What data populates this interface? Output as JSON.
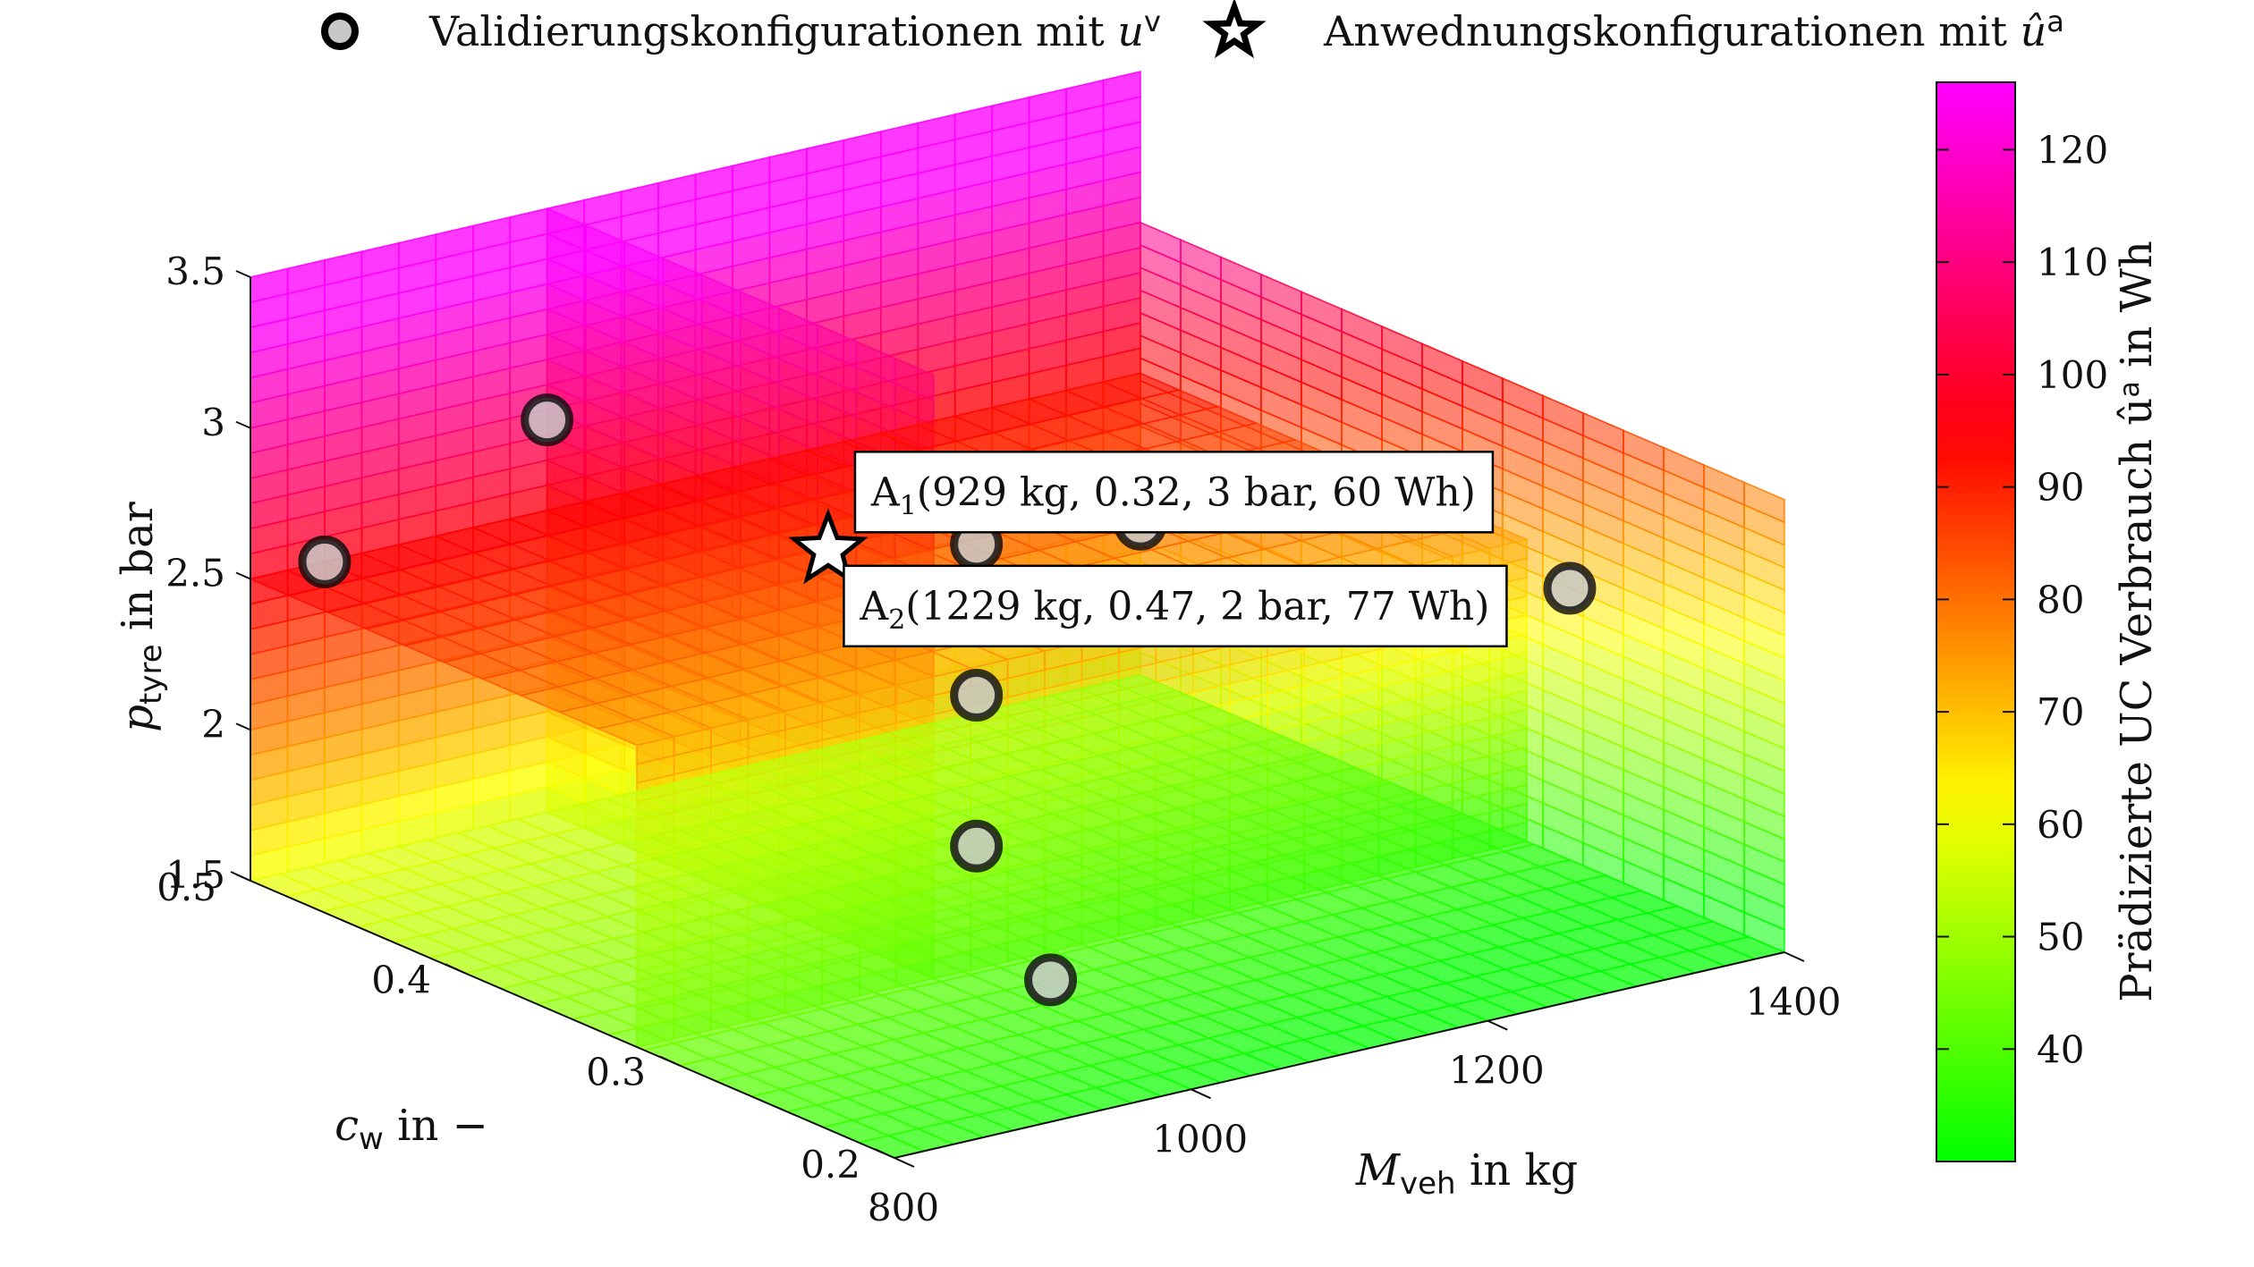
{
  "chart_data": {
    "type": "scatter",
    "variant": "3d-slice-volume",
    "legend": {
      "placement": "top",
      "entries": [
        {
          "marker": "circle",
          "text": "Validierungskonfigurationen mit u",
          "sup": "v"
        },
        {
          "marker": "star",
          "text": "Anwednungskonfigurationen mit û",
          "sup": "a"
        }
      ]
    },
    "axes": {
      "x": {
        "var": "M",
        "sub": "veh",
        "rest": " in kg",
        "range": [
          800,
          1400
        ],
        "ticks": [
          "800",
          "1000",
          "1200",
          "1400"
        ]
      },
      "y": {
        "var": "c",
        "sub": "w",
        "rest": " in −",
        "range": [
          0.2,
          0.5
        ],
        "ticks": [
          "0.2",
          "0.3",
          "0.4",
          "0.5"
        ]
      },
      "z": {
        "var": "p",
        "sub": "tyre",
        "rest": " in bar",
        "range": [
          1.5,
          3.5
        ],
        "ticks": [
          "1.5",
          "2",
          "2.5",
          "3",
          "3.5"
        ]
      }
    },
    "colorbar": {
      "label": "Prädizierte UC Verbrauch û",
      "label_sup": "a",
      "label_rest": " in Wh",
      "range": [
        30,
        126
      ],
      "ticks": [
        "40",
        "50",
        "60",
        "70",
        "80",
        "90",
        "100",
        "110",
        "120"
      ],
      "colormap": "hsv"
    },
    "grid": true,
    "slices": {
      "M_veh": [
        1000,
        1400
      ],
      "c_w": [
        0.32,
        0.5
      ],
      "p_tyre": [
        1.5,
        2.5,
        3.5
      ]
    },
    "validation_points": [
      {
        "M": 1050,
        "c": 0.3,
        "p": 1.5
      },
      {
        "M": 1000,
        "c": 0.3,
        "p": 2.0
      },
      {
        "M": 1000,
        "c": 0.3,
        "p": 2.5
      },
      {
        "M": 1000,
        "c": 0.3,
        "p": 3.0
      },
      {
        "M": 1400,
        "c": 0.3,
        "p": 2.4
      },
      {
        "M": 1230,
        "c": 0.38,
        "p": 2.3
      },
      {
        "M": 1400,
        "c": 0.5,
        "p": 2.0
      },
      {
        "M": 1000,
        "c": 0.5,
        "p": 2.8
      },
      {
        "M": 850,
        "c": 0.5,
        "p": 2.5
      }
    ],
    "application_points": [
      {
        "name": "A",
        "sub": "1",
        "text": "(929 kg,  0.32,  3 bar,  60 Wh)",
        "M": 929,
        "c": 0.32,
        "p": 3,
        "u": 60
      },
      {
        "name": "A",
        "sub": "2",
        "text": "(1229 kg,  0.47,  2 bar,  77 Wh)",
        "M": 1229,
        "c": 0.47,
        "p": 2,
        "u": 77
      }
    ]
  }
}
